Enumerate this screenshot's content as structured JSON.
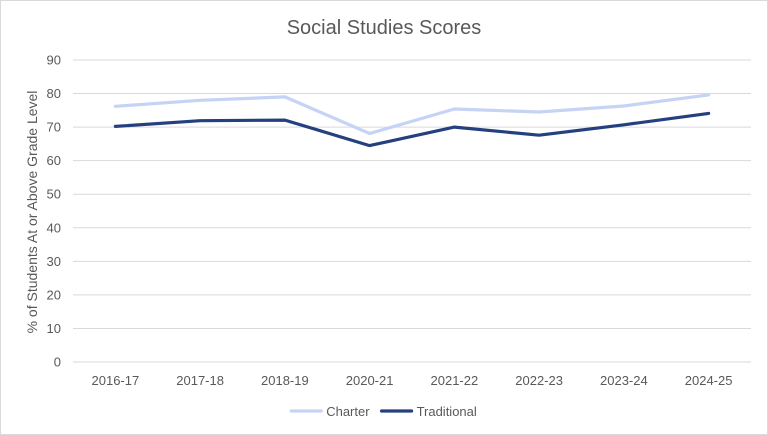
{
  "chart_data": {
    "type": "line",
    "title": "Social Studies Scores",
    "xlabel": "",
    "ylabel": "% of Students At or Above Grade Level",
    "categories": [
      "2016-17",
      "2017-18",
      "2018-19",
      "2020-21",
      "2021-22",
      "2022-23",
      "2023-24",
      "2024-25"
    ],
    "series": [
      {
        "name": "Charter",
        "color": "#c5d3f5",
        "values": [
          76.2,
          78,
          79,
          68.1,
          75.4,
          74.5,
          76.3,
          79.6
        ]
      },
      {
        "name": "Traditional",
        "color": "#24407e",
        "values": [
          70.2,
          71.9,
          72.1,
          64.5,
          70,
          67.6,
          70.7,
          74.1
        ]
      }
    ],
    "ylim": [
      0,
      90
    ],
    "yticks": [
      0,
      10,
      20,
      30,
      40,
      50,
      60,
      70,
      80,
      90
    ],
    "grid": true,
    "gridColor": "#d9d9d9",
    "legend_position": "bottom"
  }
}
